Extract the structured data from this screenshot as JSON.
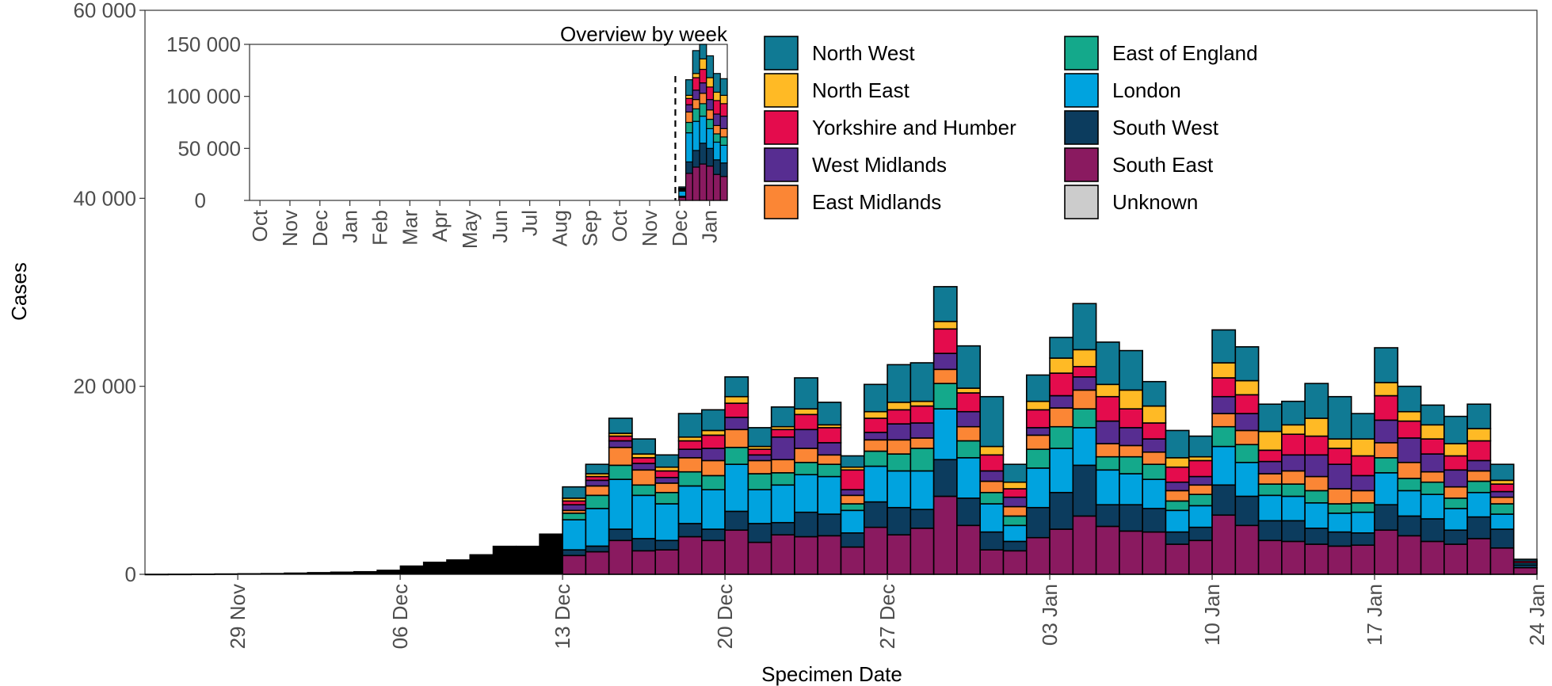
{
  "chart_data": [
    {
      "type": "bar",
      "stacked": true,
      "title": "",
      "xlabel": "Specimen Date",
      "ylabel": "Cases",
      "ylim": [
        0,
        60000
      ],
      "yticks": [
        0,
        20000,
        40000,
        60000
      ],
      "ytick_labels": [
        "0",
        "20 000",
        "40 000",
        "60 000"
      ],
      "xticks": [
        "29 Nov",
        "06 Dec",
        "13 Dec",
        "20 Dec",
        "27 Dec",
        "03 Jan",
        "10 Jan",
        "17 Jan",
        "24 Jan"
      ],
      "x_start": "25 Nov",
      "x_end": "24 Jan",
      "legend_position": "top-right",
      "colors": {
        "South East": "#8a1a60",
        "South West": "#0c3c5e",
        "London": "#00a3df",
        "East of England": "#14a98b",
        "East Midlands": "#fb8635",
        "West Midlands": "#572d91",
        "Yorkshire and Humber": "#e40c4d",
        "North East": "#ffba25",
        "North West": "#107a94",
        "Unknown": "#cccccc",
        "Early": "#000000"
      },
      "series_order": [
        "South East",
        "South West",
        "London",
        "East of England",
        "East Midlands",
        "West Midlands",
        "Yorkshire and Humber",
        "North East",
        "North West",
        "Unknown"
      ],
      "days": [
        {
          "date": "25 Nov",
          "total": 20
        },
        {
          "date": "26 Nov",
          "total": 30
        },
        {
          "date": "27 Nov",
          "total": 40
        },
        {
          "date": "28 Nov",
          "total": 60
        },
        {
          "date": "29 Nov",
          "total": 80
        },
        {
          "date": "30 Nov",
          "total": 100
        },
        {
          "date": "01 Dec",
          "total": 150
        },
        {
          "date": "02 Dec",
          "total": 200
        },
        {
          "date": "03 Dec",
          "total": 250
        },
        {
          "date": "04 Dec",
          "total": 300
        },
        {
          "date": "05 Dec",
          "total": 450
        },
        {
          "date": "06 Dec",
          "total": 900
        },
        {
          "date": "07 Dec",
          "total": 1300
        },
        {
          "date": "08 Dec",
          "total": 1550
        },
        {
          "date": "09 Dec",
          "total": 2100
        },
        {
          "date": "10 Dec",
          "total": 3000
        },
        {
          "date": "11 Dec",
          "total": 3000
        },
        {
          "date": "12 Dec",
          "total": 4300
        },
        {
          "date": "13 Dec",
          "values": [
            2000,
            600,
            3200,
            700,
            300,
            600,
            400,
            300,
            1200,
            0
          ]
        },
        {
          "date": "14 Dec",
          "values": [
            2400,
            600,
            4000,
            1400,
            1000,
            600,
            400,
            300,
            1000,
            0
          ]
        },
        {
          "date": "15 Dec",
          "values": [
            3600,
            1200,
            5300,
            1500,
            1900,
            700,
            500,
            300,
            1600,
            0
          ]
        },
        {
          "date": "16 Dec",
          "values": [
            2500,
            1300,
            4600,
            1100,
            1600,
            700,
            600,
            400,
            1600,
            0
          ]
        },
        {
          "date": "17 Dec",
          "values": [
            2600,
            1000,
            3900,
            1200,
            1000,
            600,
            700,
            400,
            1300,
            0
          ]
        },
        {
          "date": "18 Dec",
          "values": [
            4000,
            1400,
            4000,
            1500,
            1500,
            900,
            900,
            400,
            2500,
            0
          ]
        },
        {
          "date": "19 Dec",
          "values": [
            3600,
            1200,
            4200,
            1500,
            1600,
            1300,
            1400,
            500,
            2200,
            0
          ]
        },
        {
          "date": "20 Dec",
          "values": [
            4700,
            2000,
            5000,
            1800,
            1900,
            1300,
            1500,
            700,
            2100,
            0
          ]
        },
        {
          "date": "21 Dec",
          "values": [
            3400,
            2000,
            3600,
            1700,
            1400,
            600,
            600,
            300,
            2000,
            0
          ]
        },
        {
          "date": "22 Dec",
          "values": [
            4200,
            1300,
            4000,
            1300,
            1400,
            2400,
            800,
            300,
            2100,
            0
          ]
        },
        {
          "date": "23 Dec",
          "values": [
            4000,
            2600,
            4000,
            1300,
            1500,
            2000,
            1600,
            600,
            3300,
            0
          ]
        },
        {
          "date": "24 Dec",
          "values": [
            4100,
            2300,
            4000,
            1300,
            1000,
            1300,
            1600,
            300,
            2400,
            0
          ]
        },
        {
          "date": "25 Dec",
          "values": [
            2900,
            1500,
            2400,
            700,
            900,
            600,
            2100,
            300,
            1200,
            0
          ]
        },
        {
          "date": "26 Dec",
          "values": [
            5000,
            2700,
            3800,
            1600,
            1200,
            800,
            1500,
            700,
            2900,
            0
          ]
        },
        {
          "date": "27 Dec",
          "values": [
            4200,
            2900,
            3900,
            1800,
            1500,
            1700,
            1500,
            800,
            4000,
            0
          ]
        },
        {
          "date": "28 Dec",
          "values": [
            4900,
            2000,
            4100,
            2400,
            1100,
            1600,
            1800,
            500,
            4100,
            0
          ]
        },
        {
          "date": "29 Dec",
          "values": [
            8300,
            3900,
            5400,
            2700,
            1500,
            1700,
            2600,
            800,
            3700,
            0
          ]
        },
        {
          "date": "30 Dec",
          "values": [
            5200,
            2900,
            4300,
            1800,
            1500,
            1600,
            2000,
            500,
            4500,
            0
          ]
        },
        {
          "date": "31 Dec",
          "values": [
            2600,
            1900,
            3000,
            1200,
            1200,
            1100,
            1700,
            900,
            5300,
            0
          ]
        },
        {
          "date": "01 Jan",
          "values": [
            2500,
            1000,
            1700,
            1000,
            1000,
            1000,
            900,
            700,
            1900,
            0
          ]
        },
        {
          "date": "02 Jan",
          "values": [
            3900,
            3200,
            4200,
            2000,
            1500,
            800,
            1900,
            900,
            2800,
            0
          ]
        },
        {
          "date": "03 Jan",
          "values": [
            4800,
            3900,
            4700,
            2300,
            2000,
            1300,
            2400,
            1600,
            2200,
            0
          ]
        },
        {
          "date": "04 Jan",
          "values": [
            6200,
            5400,
            4000,
            2000,
            2000,
            1400,
            1100,
            1800,
            4900,
            0
          ]
        },
        {
          "date": "05 Jan",
          "values": [
            5100,
            2300,
            3700,
            1400,
            1400,
            2400,
            2600,
            1300,
            4500,
            0
          ]
        },
        {
          "date": "06 Jan",
          "values": [
            4600,
            2800,
            3300,
            1800,
            1200,
            1900,
            2000,
            2000,
            4200,
            0
          ]
        },
        {
          "date": "07 Jan",
          "values": [
            4500,
            2500,
            3100,
            1600,
            1300,
            1400,
            1700,
            1800,
            2600,
            0
          ]
        },
        {
          "date": "08 Jan",
          "values": [
            3200,
            1300,
            2300,
            1000,
            1100,
            900,
            1600,
            1000,
            2900,
            0
          ]
        },
        {
          "date": "09 Jan",
          "values": [
            3600,
            1400,
            2300,
            1200,
            1000,
            900,
            1700,
            400,
            2200,
            0
          ]
        },
        {
          "date": "10 Jan",
          "values": [
            6300,
            3200,
            4100,
            2100,
            1400,
            1800,
            2000,
            1600,
            3500,
            0
          ]
        },
        {
          "date": "11 Jan",
          "values": [
            5200,
            3100,
            3600,
            1900,
            1500,
            1800,
            2000,
            1500,
            3600,
            0
          ]
        },
        {
          "date": "12 Jan",
          "values": [
            3600,
            2100,
            2700,
            1200,
            1100,
            1300,
            1200,
            2000,
            2900,
            0
          ]
        },
        {
          "date": "13 Jan",
          "values": [
            3500,
            2200,
            2600,
            1300,
            1400,
            1700,
            2200,
            1000,
            2500,
            0
          ]
        },
        {
          "date": "14 Jan",
          "values": [
            3200,
            1700,
            2700,
            1300,
            1500,
            2300,
            2000,
            1900,
            3700,
            0
          ]
        },
        {
          "date": "15 Jan",
          "values": [
            3000,
            1500,
            2000,
            1000,
            1600,
            2600,
            1700,
            1000,
            4500,
            0
          ]
        },
        {
          "date": "16 Jan",
          "values": [
            3100,
            1300,
            2200,
            1000,
            1300,
            1600,
            2100,
            1800,
            2700,
            0
          ]
        },
        {
          "date": "17 Jan",
          "values": [
            4700,
            2700,
            3400,
            1600,
            1600,
            2400,
            2600,
            1400,
            3700,
            0
          ]
        },
        {
          "date": "18 Jan",
          "values": [
            4100,
            2100,
            2700,
            1300,
            1700,
            2600,
            1800,
            1000,
            2700,
            0
          ]
        },
        {
          "date": "19 Jan",
          "values": [
            3500,
            2400,
            2600,
            1300,
            1100,
            1900,
            1600,
            1500,
            2100,
            0
          ]
        },
        {
          "date": "20 Jan",
          "values": [
            3200,
            1500,
            2300,
            1100,
            1200,
            1800,
            1500,
            1300,
            2900,
            0
          ]
        },
        {
          "date": "21 Jan",
          "values": [
            3800,
            2300,
            2600,
            1200,
            1100,
            1100,
            2100,
            1300,
            2600,
            0
          ]
        },
        {
          "date": "22 Jan",
          "values": [
            2800,
            2000,
            1600,
            1100,
            700,
            600,
            800,
            400,
            1700,
            0
          ]
        },
        {
          "date": "23 Jan",
          "values": [
            700,
            300,
            200,
            0,
            0,
            0,
            200,
            0,
            200,
            0
          ]
        }
      ]
    },
    {
      "type": "bar",
      "stacked": true,
      "title": "Overview by week",
      "ylim": [
        0,
        150000
      ],
      "yticks": [
        0,
        50000,
        100000,
        150000
      ],
      "ytick_labels": [
        "0",
        "50 000",
        "100 000",
        "150 000"
      ],
      "xticks": [
        "Oct",
        "Nov",
        "Dec",
        "Jan",
        "Feb",
        "Mar",
        "Apr",
        "May",
        "Jun",
        "Jul",
        "Aug",
        "Sep",
        "Oct",
        "Nov",
        "Dec",
        "Jan"
      ],
      "marker_week_index": 61,
      "weeks": [
        {
          "week_index": 62,
          "values": [
            3000,
            1000,
            5000,
            1000,
            500,
            500,
            500,
            300,
            1200,
            0
          ]
        },
        {
          "week_index": 63,
          "values": [
            26000,
            11000,
            28000,
            10000,
            10000,
            7000,
            6000,
            3000,
            15000,
            0
          ]
        },
        {
          "week_index": 64,
          "values": [
            32000,
            16000,
            28000,
            12000,
            9000,
            9000,
            12000,
            4000,
            22000,
            0
          ]
        },
        {
          "week_index": 65,
          "values": [
            35000,
            20000,
            26000,
            12000,
            10000,
            10000,
            13000,
            10000,
            24000,
            0
          ]
        },
        {
          "week_index": 66,
          "values": [
            33000,
            17000,
            19000,
            9000,
            9000,
            10000,
            12000,
            9000,
            21000,
            0
          ]
        },
        {
          "week_index": 67,
          "values": [
            25000,
            14000,
            17000,
            8000,
            8000,
            11000,
            13000,
            8000,
            18000,
            0
          ]
        },
        {
          "week_index": 68,
          "values": [
            23000,
            13000,
            17000,
            8000,
            8000,
            12000,
            12000,
            8000,
            16000,
            0
          ]
        }
      ]
    }
  ],
  "legend": {
    "left": [
      {
        "label": "North West",
        "color": "#107a94"
      },
      {
        "label": "North East",
        "color": "#ffba25"
      },
      {
        "label": "Yorkshire and Humber",
        "color": "#e40c4d"
      },
      {
        "label": "West Midlands",
        "color": "#572d91"
      },
      {
        "label": "East Midlands",
        "color": "#fb8635"
      }
    ],
    "right": [
      {
        "label": "East of England",
        "color": "#14a98b"
      },
      {
        "label": "London",
        "color": "#00a3df"
      },
      {
        "label": "South West",
        "color": "#0c3c5e"
      },
      {
        "label": "South East",
        "color": "#8a1a60"
      },
      {
        "label": "Unknown",
        "color": "#cccccc"
      }
    ]
  }
}
